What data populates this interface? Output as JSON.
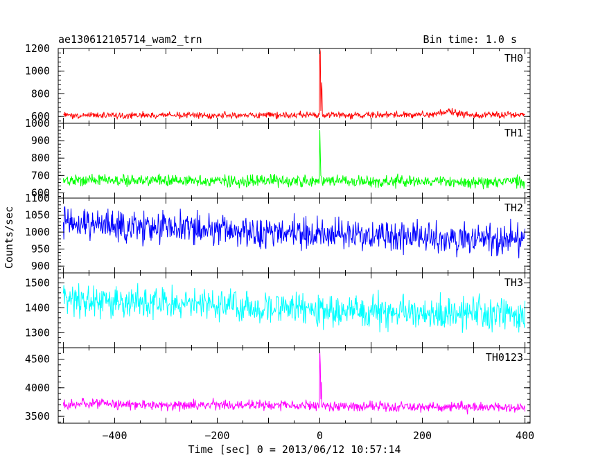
{
  "header": {
    "title": "ae130612105714_wam2_trn",
    "bin_time": "Bin time: 1.0 s"
  },
  "axes": {
    "ylabel": "Counts/sec",
    "xlabel": "Time [sec] 0 = 2013/06/12 10:57:14",
    "xlim": [
      -510,
      410
    ],
    "xticks": [
      -400,
      -200,
      0,
      200,
      400
    ],
    "xtick_labels": [
      "−400",
      "−200",
      "0",
      "200",
      "400"
    ]
  },
  "chart_data": [
    {
      "type": "line",
      "name": "TH0",
      "color": "#ff0000",
      "ylim": [
        540,
        1200
      ],
      "yticks": [
        600,
        800,
        1000,
        1200
      ],
      "baseline_start": 610,
      "baseline_end": 615,
      "noise": 25,
      "bumps": [
        [
          250,
          40,
          30
        ]
      ],
      "spike": {
        "x": 0,
        "values": [
          1200,
          1170,
          650,
          830,
          900
        ]
      }
    },
    {
      "type": "line",
      "name": "TH1",
      "color": "#00ff00",
      "ylim": [
        570,
        1000
      ],
      "yticks": [
        600,
        700,
        800,
        900,
        1000
      ],
      "baseline_start": 675,
      "baseline_end": 660,
      "noise": 30,
      "bumps": [],
      "spike": {
        "x": 0,
        "values": [
          960,
          830,
          700
        ]
      }
    },
    {
      "type": "line",
      "name": "TH2",
      "color": "#0000ff",
      "ylim": [
        880,
        1100
      ],
      "yticks": [
        900,
        950,
        1000,
        1050,
        1100
      ],
      "baseline_start": 1025,
      "baseline_end": 975,
      "noise": 40,
      "bumps": [],
      "spike": null
    },
    {
      "type": "line",
      "name": "TH3",
      "color": "#00ffff",
      "ylim": [
        1240,
        1540
      ],
      "yticks": [
        1300,
        1400,
        1500
      ],
      "baseline_start": 1430,
      "baseline_end": 1370,
      "noise": 55,
      "bumps": [],
      "spike": null
    },
    {
      "type": "line",
      "name": "TH0123",
      "color": "#ff00ff",
      "ylim": [
        3380,
        4700
      ],
      "yticks": [
        3500,
        4000,
        4500
      ],
      "baseline_start": 3720,
      "baseline_end": 3650,
      "noise": 80,
      "bumps": [],
      "spike": {
        "x": 0,
        "values": [
          4650,
          4400,
          3800,
          4100
        ]
      }
    }
  ]
}
